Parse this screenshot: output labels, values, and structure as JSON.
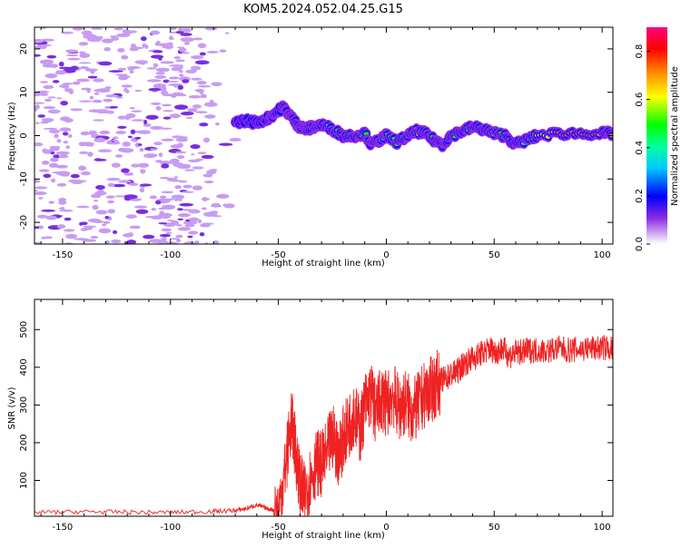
{
  "chart_data": [
    {
      "type": "heatmap",
      "title": "KOM5.2024.052.04.25.G15",
      "xlabel": "Height of straight line (km)",
      "ylabel": "Frequency (Hz)",
      "xlim": [
        -163,
        105
      ],
      "ylim": [
        -25,
        25
      ],
      "x_ticks": [
        "-150",
        "-100",
        "-50",
        "0",
        "50",
        "100"
      ],
      "x_tick_values": [
        -150,
        -100,
        -50,
        0,
        50,
        100
      ],
      "y_ticks": [
        "-20",
        "-10",
        "0",
        "10",
        "20"
      ],
      "y_tick_values": [
        -20,
        -10,
        0,
        10,
        20
      ],
      "colorbar": {
        "label": "Normalized spectral amplitude",
        "ticks": [
          "0.0",
          "0.2",
          "0.4",
          "0.6",
          "0.8"
        ],
        "tick_values": [
          0.0,
          0.2,
          0.4,
          0.6,
          0.8
        ],
        "range": [
          0,
          0.9
        ],
        "colormap": "gist_rainbow-like (purple to red)"
      },
      "noise_region_x": [
        -163,
        -67
      ],
      "noise_amplitude": 0.05,
      "signal_ridge": {
        "x": [
          -70,
          -65,
          -60,
          -55,
          -52,
          -48,
          -45,
          -42,
          -40,
          -37,
          -34,
          -30,
          -25,
          -20,
          -15,
          -10,
          -7,
          -3,
          0,
          5,
          10,
          14,
          18,
          22,
          26,
          30,
          35,
          40,
          45,
          50,
          55,
          60,
          65,
          70,
          80,
          90,
          100,
          105
        ],
        "y": [
          3,
          3.5,
          3,
          4,
          5,
          6.5,
          5,
          3,
          2,
          1.5,
          2,
          2.5,
          1.5,
          0,
          0,
          0.5,
          -2,
          -1,
          0,
          -1.5,
          0,
          1,
          0.5,
          -1,
          -2,
          0,
          1,
          2,
          1.5,
          0.5,
          0,
          -2,
          -1,
          0,
          0.5,
          0.5,
          0.5,
          0.5
        ],
        "amplitude": [
          0.25,
          0.3,
          0.3,
          0.3,
          0.35,
          0.3,
          0.35,
          0.4,
          0.45,
          0.4,
          0.45,
          0.4,
          0.5,
          0.8,
          0.5,
          0.6,
          0.45,
          0.5,
          0.55,
          0.6,
          0.5,
          0.75,
          0.6,
          0.55,
          0.5,
          0.55,
          0.6,
          0.65,
          0.6,
          0.7,
          0.55,
          0.55,
          0.5,
          0.7,
          0.8,
          0.85,
          0.85,
          0.85
        ]
      },
      "grid": false
    },
    {
      "type": "line",
      "xlabel": "Height of straight line (km)",
      "ylabel": "SNR (v/v)",
      "xlim": [
        -163,
        105
      ],
      "ylim": [
        5,
        580
      ],
      "x_ticks": [
        "-150",
        "-100",
        "-50",
        "0",
        "50",
        "100"
      ],
      "x_tick_values": [
        -150,
        -100,
        -50,
        0,
        50,
        100
      ],
      "y_ticks": [
        "100",
        "200",
        "300",
        "400",
        "500"
      ],
      "y_tick_values": [
        100,
        200,
        300,
        400,
        500
      ],
      "series": [
        {
          "color": "#ee2222",
          "x": [
            -163,
            -140,
            -120,
            -100,
            -80,
            -70,
            -65,
            -60,
            -55,
            -50,
            -47,
            -44,
            -42,
            -40,
            -38,
            -35,
            -32,
            -30,
            -27,
            -25,
            -22,
            -20,
            -17,
            -15,
            -12,
            -10,
            -7,
            -5,
            -2,
            0,
            3,
            6,
            9,
            12,
            15,
            18,
            21,
            24,
            27,
            30,
            33,
            36,
            39,
            42,
            45,
            48,
            51,
            54,
            57,
            60,
            63,
            66,
            70,
            75,
            80,
            85,
            90,
            95,
            100,
            105
          ],
          "y": [
            15,
            17,
            16,
            15,
            18,
            20,
            25,
            35,
            25,
            20,
            120,
            260,
            180,
            90,
            60,
            110,
            150,
            140,
            180,
            220,
            170,
            210,
            250,
            280,
            230,
            300,
            330,
            280,
            320,
            300,
            330,
            290,
            310,
            280,
            300,
            330,
            340,
            360,
            370,
            380,
            390,
            410,
            420,
            430,
            440,
            450,
            440,
            450,
            430,
            440,
            440,
            445,
            445,
            445,
            450,
            445,
            448,
            450,
            452,
            450
          ]
        }
      ],
      "grid": false
    }
  ],
  "colors": {
    "line": "#ee2222",
    "noise": "#c79cf2",
    "noise_dark": "#7a2ee0"
  }
}
